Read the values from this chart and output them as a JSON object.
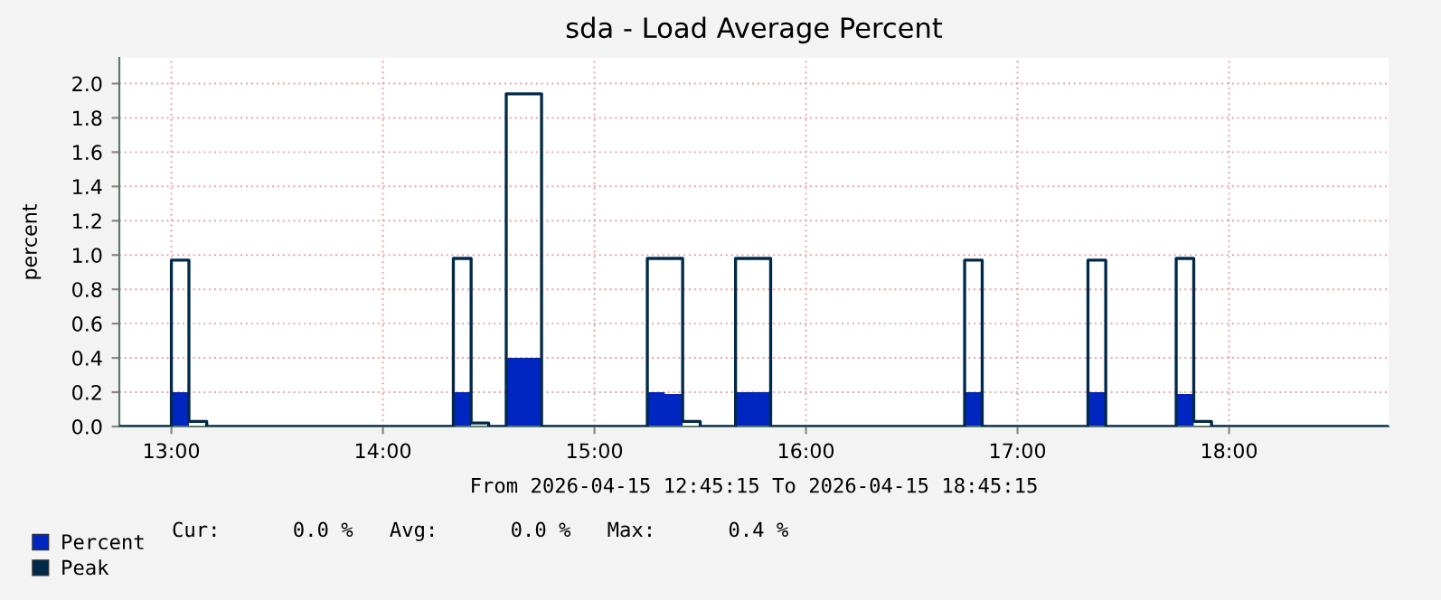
{
  "chart_data": {
    "type": "step",
    "title": "sda - Load Average Percent",
    "ylabel": "percent",
    "xlabel": "From 2026-04-15 12:45:15 To 2026-04-15 18:45:15",
    "series": [
      {
        "name": "Percent",
        "type": "area",
        "color": "#0026c2",
        "x": [
          12.754,
          13.0,
          13.083,
          14.333,
          14.417,
          14.583,
          14.75,
          15.25,
          15.333,
          15.417,
          15.667,
          15.833,
          16.75,
          16.833,
          17.333,
          17.417,
          17.75,
          17.833,
          18.754
        ],
        "values": [
          0,
          0.2,
          0,
          0.2,
          0,
          0.4,
          0,
          0.2,
          0.19,
          0,
          0.2,
          0,
          0.2,
          0,
          0.2,
          0,
          0.19,
          0,
          0
        ]
      },
      {
        "name": "Peak",
        "color": "#002a4a",
        "x": [
          12.754,
          13.0,
          13.083,
          13.167,
          14.333,
          14.417,
          14.5,
          14.583,
          14.75,
          15.25,
          15.417,
          15.5,
          15.667,
          15.833,
          16.75,
          16.833,
          17.333,
          17.417,
          17.75,
          17.833,
          17.917,
          18.754
        ],
        "values": [
          0,
          0.97,
          0.03,
          0,
          0.98,
          0.02,
          0,
          1.94,
          0,
          0.98,
          0.03,
          0,
          0.98,
          0,
          0.97,
          0,
          0.97,
          0,
          0.98,
          0.03,
          0,
          0
        ]
      }
    ],
    "xlim": [
      12.754,
      18.754
    ],
    "xticks": [
      {
        "value": 13,
        "label": "13:00"
      },
      {
        "value": 14,
        "label": "14:00"
      },
      {
        "value": 15,
        "label": "15:00"
      },
      {
        "value": 16,
        "label": "16:00"
      },
      {
        "value": 17,
        "label": "17:00"
      },
      {
        "value": 18,
        "label": "18:00"
      }
    ],
    "ylim": [
      0,
      2.15
    ],
    "yticks": [
      {
        "value": 0,
        "label": "0.0"
      },
      {
        "value": 0.2,
        "label": "0.2"
      },
      {
        "value": 0.4,
        "label": "0.4"
      },
      {
        "value": 0.6,
        "label": "0.6"
      },
      {
        "value": 0.8,
        "label": "0.8"
      },
      {
        "value": 1.0,
        "label": "1.0"
      },
      {
        "value": 1.2,
        "label": "1.2"
      },
      {
        "value": 1.4,
        "label": "1.4"
      },
      {
        "value": 1.6,
        "label": "1.6"
      },
      {
        "value": 1.8,
        "label": "1.8"
      },
      {
        "value": 2.0,
        "label": "2.0"
      }
    ],
    "grid": true,
    "legend": "bottom left",
    "annotations": [
      "Cur:      0.0 %   Avg:      0.0 %   Max:      0.4 %"
    ]
  }
}
